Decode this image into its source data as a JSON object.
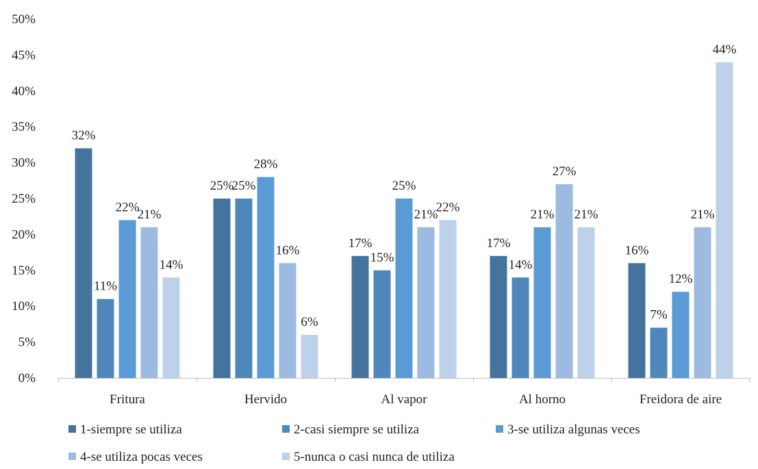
{
  "chart_data": {
    "type": "bar",
    "categories": [
      "Fritura",
      "Hervido",
      "Al vapor",
      "Al horno",
      "Freidora de aire"
    ],
    "series": [
      {
        "name": "1-siempre se utiliza",
        "color": "#44739e",
        "values": [
          32,
          25,
          17,
          17,
          16
        ]
      },
      {
        "name": "2-casi siempre se utiliza",
        "color": "#4f87bc",
        "values": [
          11,
          25,
          15,
          14,
          7
        ]
      },
      {
        "name": "3-se utiliza algunas veces",
        "color": "#5b9bd5",
        "values": [
          22,
          28,
          25,
          21,
          12
        ]
      },
      {
        "name": "4-se utiliza pocas veces",
        "color": "#9dbbe1",
        "values": [
          21,
          16,
          21,
          27,
          21
        ]
      },
      {
        "name": "5-nunca o casi nunca de utiliza",
        "color": "#bdd1eb",
        "values": [
          14,
          6,
          22,
          21,
          44
        ]
      }
    ],
    "ylim": [
      0,
      50
    ],
    "yticks": [
      "0%",
      "5%",
      "10%",
      "15%",
      "20%",
      "25%",
      "30%",
      "35%",
      "40%",
      "45%",
      "50%"
    ],
    "value_suffix": "%",
    "title": "",
    "xlabel": "",
    "ylabel": "",
    "grid": false,
    "legend": "bottom"
  }
}
